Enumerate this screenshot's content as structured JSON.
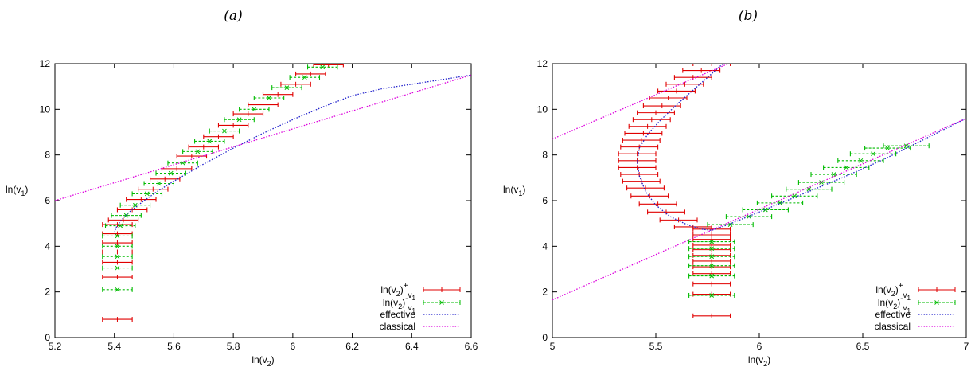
{
  "colors": {
    "plus": "#e00000",
    "minus": "#00bb00",
    "effective": "#2222cc",
    "classical": "#dd00dd"
  },
  "chart_data": [
    {
      "type": "scatter",
      "panel_label": "(a)",
      "xlabel": "ln(v2)",
      "ylabel": "ln(v1)",
      "xlim": [
        5.2,
        6.6
      ],
      "ylim": [
        0,
        12
      ],
      "xticks": [
        "5.2",
        "5.4",
        "5.6",
        "5.8",
        "6",
        "6.2",
        "6.4",
        "6.6"
      ],
      "yticks": [
        "0",
        "2",
        "4",
        "6",
        "8",
        "10",
        "12"
      ],
      "grid": false,
      "legend": {
        "position": "bottom-right",
        "entries": [
          "ln(v2)+v1",
          "ln(v2)-v1",
          "effective",
          "classical"
        ]
      },
      "series": [
        {
          "name": "ln(v2)+v1",
          "style": "errorbar-x",
          "x": [
            5.41,
            5.41,
            5.41,
            5.41,
            5.41,
            5.41,
            5.41,
            5.43,
            5.46,
            5.49,
            5.53,
            5.57,
            5.61,
            5.66,
            5.7,
            5.75,
            5.8,
            5.85,
            5.9,
            5.95,
            6.01,
            6.06,
            6.12,
            6.18
          ],
          "y": [
            0.8,
            2.65,
            3.3,
            3.75,
            4.15,
            4.55,
            4.95,
            5.15,
            5.6,
            6.05,
            6.5,
            6.95,
            7.4,
            7.95,
            8.35,
            8.8,
            9.3,
            9.8,
            10.2,
            10.65,
            11.1,
            11.55,
            11.95,
            12.4
          ],
          "xerr": 0.05
        },
        {
          "name": "ln(v2)-v1",
          "style": "errorbar-x",
          "x": [
            5.41,
            5.41,
            5.41,
            5.41,
            5.41,
            5.42,
            5.44,
            5.47,
            5.51,
            5.55,
            5.59,
            5.63,
            5.68,
            5.72,
            5.77,
            5.82,
            5.87,
            5.92,
            5.98,
            6.04,
            6.1,
            6.16,
            6.22
          ],
          "y": [
            2.1,
            3.05,
            3.55,
            4.0,
            4.45,
            4.9,
            5.35,
            5.8,
            6.3,
            6.75,
            7.2,
            7.65,
            8.15,
            8.6,
            9.05,
            9.55,
            10.0,
            10.5,
            10.95,
            11.4,
            11.85,
            12.3,
            12.75
          ],
          "xerr": 0.05
        },
        {
          "name": "effective",
          "style": "dotted-line",
          "x": [
            5.4,
            5.405,
            5.42,
            5.45,
            5.5,
            5.55,
            5.6,
            5.7,
            5.8,
            5.9,
            6.0,
            6.1,
            6.2,
            6.3,
            6.4,
            6.5,
            6.6
          ],
          "y": [
            4.6,
            4.8,
            5.1,
            5.5,
            6.0,
            6.45,
            6.85,
            7.6,
            8.3,
            8.95,
            9.55,
            10.1,
            10.6,
            10.9,
            11.1,
            11.3,
            11.5
          ]
        },
        {
          "name": "classical",
          "style": "dotted-line",
          "x": [
            5.2,
            6.6
          ],
          "y": [
            6.0,
            11.5
          ]
        }
      ]
    },
    {
      "type": "scatter",
      "panel_label": "(b)",
      "xlabel": "ln(v2)",
      "ylabel": "ln(v1)",
      "xlim": [
        5,
        7
      ],
      "ylim": [
        0,
        12
      ],
      "xticks": [
        "5",
        "5.5",
        "6",
        "6.5",
        "7"
      ],
      "yticks": [
        "0",
        "2",
        "4",
        "6",
        "8",
        "10",
        "12"
      ],
      "grid": false,
      "legend": {
        "position": "bottom-right",
        "entries": [
          "ln(v2)+v1",
          "ln(v2)-v1",
          "effective",
          "classical"
        ]
      },
      "series": [
        {
          "name": "ln(v2)+v1",
          "style": "errorbar-x",
          "x": [
            5.77,
            5.77,
            5.77,
            5.77,
            5.77,
            5.77,
            5.77,
            5.77,
            5.77,
            5.77,
            5.77,
            5.77,
            5.68,
            5.61,
            5.55,
            5.51,
            5.47,
            5.45,
            5.43,
            5.42,
            5.41,
            5.41,
            5.41,
            5.42,
            5.43,
            5.44,
            5.46,
            5.48,
            5.5,
            5.53,
            5.56,
            5.6,
            5.64,
            5.68,
            5.72,
            5.77
          ],
          "y": [
            0.95,
            1.9,
            2.35,
            2.8,
            3.1,
            3.35,
            3.6,
            3.85,
            4.05,
            4.3,
            4.5,
            4.75,
            4.85,
            5.15,
            5.5,
            5.85,
            6.2,
            6.55,
            6.85,
            7.15,
            7.45,
            7.75,
            8.05,
            8.35,
            8.65,
            8.95,
            9.25,
            9.55,
            9.85,
            10.15,
            10.5,
            10.8,
            11.1,
            11.4,
            11.7,
            12.0
          ],
          "xerr": 0.09
        },
        {
          "name": "ln(v2)-v1",
          "style": "errorbar-x",
          "x": [
            5.77,
            5.77,
            5.77,
            5.77,
            5.77,
            5.77,
            5.86,
            5.95,
            6.03,
            6.1,
            6.17,
            6.24,
            6.3,
            6.36,
            6.42,
            6.49,
            6.55,
            6.62,
            6.71
          ],
          "y": [
            1.85,
            2.7,
            3.15,
            3.55,
            3.9,
            4.2,
            4.95,
            5.3,
            5.6,
            5.9,
            6.2,
            6.5,
            6.8,
            7.15,
            7.45,
            7.75,
            8.05,
            8.3,
            8.4
          ],
          "xerr": 0.11
        },
        {
          "name": "effective",
          "style": "dotted-line",
          "x": [
            5.9,
            5.8,
            5.7,
            5.6,
            5.52,
            5.46,
            5.42,
            5.41,
            5.42,
            5.45,
            5.5,
            5.57,
            5.65,
            5.72,
            5.77,
            5.85,
            6.0,
            6.2,
            6.4,
            6.6,
            6.8,
            7.0
          ],
          "y": [
            12.6,
            11.8,
            11.0,
            10.2,
            9.5,
            8.9,
            8.3,
            7.7,
            7.1,
            6.4,
            5.8,
            5.3,
            4.95,
            4.75,
            4.7,
            4.95,
            5.5,
            6.25,
            7.0,
            7.8,
            8.7,
            9.6
          ]
        },
        {
          "name": "classical",
          "style": "dotted-line",
          "x": [
            5.0,
            5.85
          ],
          "y": [
            8.7,
            12.0
          ]
        },
        {
          "name": "classical",
          "style": "dotted-line",
          "x": [
            5.0,
            7.0
          ],
          "y": [
            1.65,
            9.6
          ]
        }
      ]
    }
  ]
}
